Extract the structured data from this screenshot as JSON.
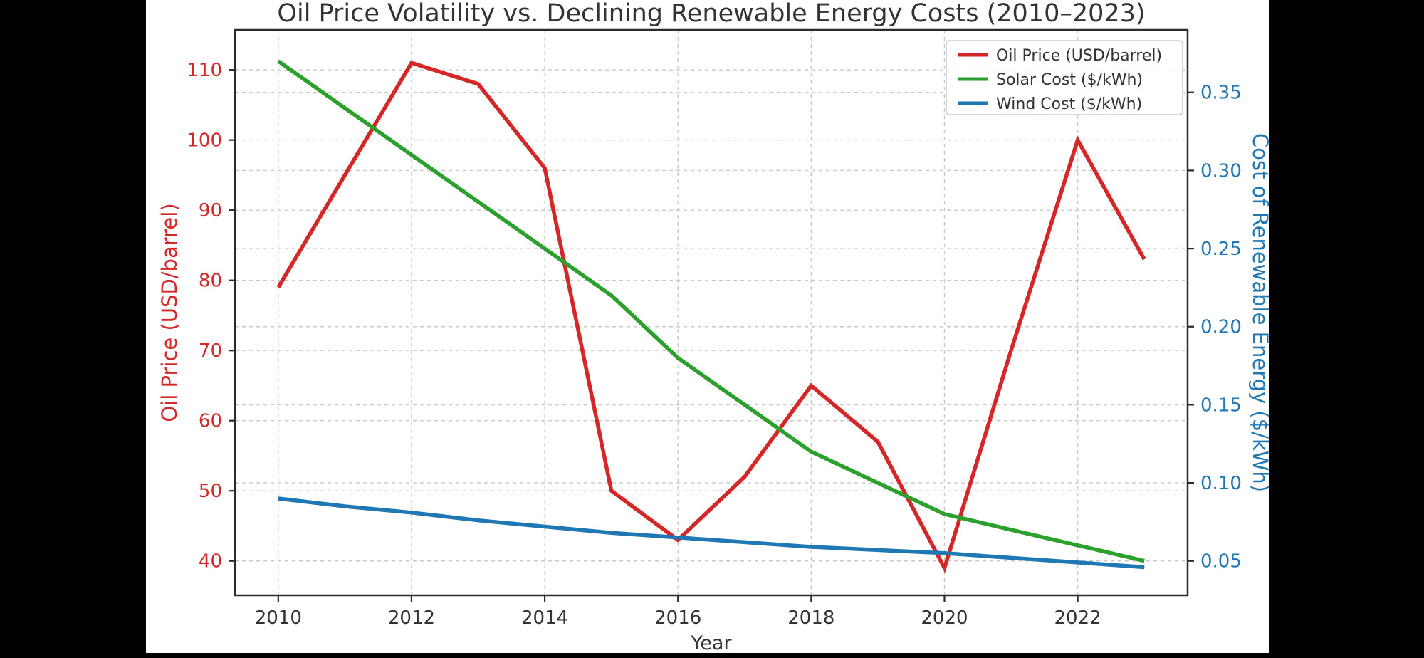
{
  "figure": {
    "background": "#000000",
    "canvas_color": "#ffffff",
    "spine_color": "#2b2b2b",
    "grid_color": "#c9c9c9",
    "text_color": "#333333"
  },
  "chart_data": {
    "type": "line",
    "title": "Oil Price Volatility vs. Declining Renewable Energy Costs (2010–2023)",
    "xlabel": "Year",
    "ylabel_left": "Oil Price (USD/barrel)",
    "ylabel_right": "Cost of Renewable Energy ($/kWh)",
    "x": [
      2010,
      2011,
      2012,
      2013,
      2014,
      2015,
      2016,
      2017,
      2018,
      2019,
      2020,
      2021,
      2022,
      2023
    ],
    "xticks": [
      2010,
      2012,
      2014,
      2016,
      2018,
      2020,
      2022
    ],
    "x_range": [
      2009.35,
      2023.65
    ],
    "grid": true,
    "legend_position": "upper right",
    "left_axis": {
      "color": "#d62728",
      "ticks": [
        40,
        50,
        60,
        70,
        80,
        90,
        100,
        110
      ],
      "range": [
        35.1,
        115.7
      ]
    },
    "right_axis": {
      "color": "#1f77b4",
      "ticks": [
        0.05,
        0.1,
        0.15,
        0.2,
        0.25,
        0.3,
        0.35
      ],
      "range": [
        0.028,
        0.39
      ]
    },
    "series": [
      {
        "name": "Oil Price (USD/barrel)",
        "axis": "left",
        "color": "#d62728",
        "values": [
          79,
          95,
          111,
          108,
          96,
          50,
          43,
          52,
          65,
          57,
          39,
          70,
          100,
          83
        ]
      },
      {
        "name": "Solar Cost ($/kWh)",
        "axis": "right",
        "color": "#2ca02c",
        "values": [
          0.37,
          0.34,
          0.31,
          0.28,
          0.25,
          0.22,
          0.18,
          0.15,
          0.12,
          0.1,
          0.08,
          0.07,
          0.06,
          0.05
        ]
      },
      {
        "name": "Wind Cost ($/kWh)",
        "axis": "right",
        "color": "#1f77b4",
        "values": [
          0.09,
          0.085,
          0.081,
          0.076,
          0.072,
          0.068,
          0.065,
          0.062,
          0.059,
          0.057,
          0.055,
          0.052,
          0.049,
          0.046
        ]
      }
    ]
  }
}
